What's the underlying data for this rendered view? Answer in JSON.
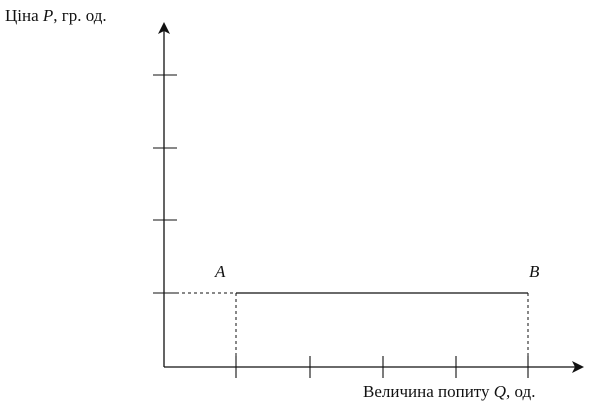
{
  "diagram": {
    "y_axis_label": {
      "prefix": "Ціна ",
      "symbol": "P",
      "suffix": ", гр. од."
    },
    "x_axis_label": {
      "prefix": "Величина попиту ",
      "symbol": "Q",
      "suffix": ", од."
    },
    "points": {
      "a": "A",
      "b": "B"
    },
    "y_ticks": 4,
    "x_ticks": 5,
    "demand_line": "horizontal (perfectly elastic demand)"
  }
}
